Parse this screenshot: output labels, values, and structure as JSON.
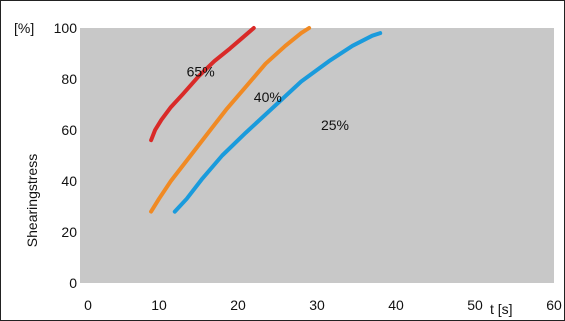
{
  "chart_data": {
    "type": "line",
    "xlabel": "t [s]",
    "ylabel": "Shearingstress",
    "yunit": "[%]",
    "xlim": [
      0,
      60
    ],
    "ylim": [
      0,
      100
    ],
    "xticks": [
      0,
      10,
      20,
      30,
      40,
      50,
      60
    ],
    "yticks": [
      0,
      20,
      40,
      60,
      80,
      100
    ],
    "ytick_labels": [
      "0",
      "20",
      "40",
      "60",
      "80",
      "100"
    ],
    "grid": false,
    "plot_background": "#c8c8c8",
    "series": [
      {
        "name": "65%",
        "color": "#d92a28",
        "x": [
          9.0,
          9.5,
          10.3,
          11.5,
          13.0,
          15.0,
          17.0,
          19.0,
          20.5,
          22.0
        ],
        "y": [
          56,
          60,
          64,
          69,
          74,
          81,
          87,
          92,
          96,
          100
        ]
      },
      {
        "name": "40%",
        "color": "#f08a24",
        "x": [
          9.0,
          10.0,
          11.5,
          13.5,
          16.0,
          18.5,
          21.0,
          23.5,
          26.0,
          28.0,
          29.0
        ],
        "y": [
          28,
          33,
          40,
          48,
          58,
          68,
          77,
          86,
          93,
          98,
          100
        ]
      },
      {
        "name": "25%",
        "color": "#1a9bdc",
        "x": [
          12.0,
          13.5,
          15.5,
          18.0,
          21.0,
          24.5,
          28.0,
          31.5,
          34.5,
          37.0,
          38.0
        ],
        "y": [
          28,
          33,
          41,
          50,
          59,
          69,
          79,
          87,
          93,
          97,
          98
        ]
      }
    ],
    "annotations": [
      {
        "text": "65%",
        "x": 13.5,
        "y": 83
      },
      {
        "text": "40%",
        "x": 22.0,
        "y": 73
      },
      {
        "text": "25%",
        "x": 30.5,
        "y": 62
      }
    ]
  }
}
